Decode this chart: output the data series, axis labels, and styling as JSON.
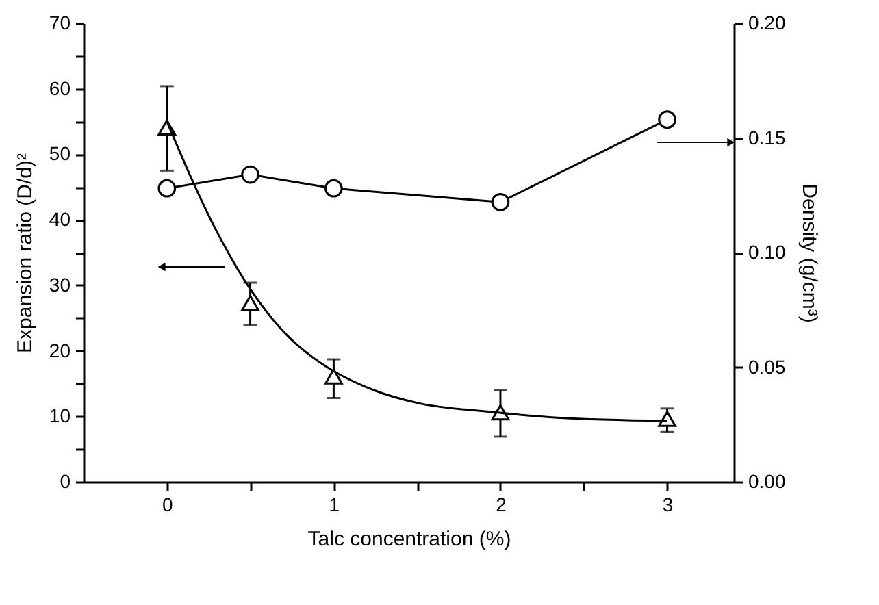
{
  "chart_data": {
    "type": "scatter",
    "xlabel": "Talc concentration (%)",
    "ylabel": "Expansion ratio (D/d)²",
    "y2label": "Density (g/cm³)",
    "xlim": [
      -0.5,
      3.4
    ],
    "xticks": [
      {
        "value": 0,
        "label": "0"
      },
      {
        "value": 0.5,
        "label": null
      },
      {
        "value": 1,
        "label": "1"
      },
      {
        "value": 1.5,
        "label": null
      },
      {
        "value": 2,
        "label": "2"
      },
      {
        "value": 2.5,
        "label": null
      },
      {
        "value": 3,
        "label": "3"
      }
    ],
    "ylim": [
      0,
      70
    ],
    "yticks": [
      0,
      {
        "value": 5,
        "label": null
      },
      10,
      {
        "value": 15,
        "label": null
      },
      20,
      {
        "value": 25,
        "label": null
      },
      30,
      {
        "value": 35,
        "label": null
      },
      40,
      {
        "value": 45,
        "label": null
      },
      50,
      {
        "value": 55,
        "label": null
      },
      60,
      {
        "value": 65,
        "label": null
      },
      70
    ],
    "y2lim": [
      0,
      0.2
    ],
    "y2ticks": [
      {
        "value": 0,
        "label": "0.00"
      },
      {
        "value": 0.05,
        "label": "0.05"
      },
      {
        "value": 0.1,
        "label": "0.10"
      },
      {
        "value": 0.15,
        "label": "0.15"
      },
      {
        "value": 0.2,
        "label": "0.20"
      }
    ],
    "grid": false,
    "series": [
      {
        "type": "scatter",
        "marker": "triangle",
        "color": "#000000",
        "x": [
          0,
          0.5,
          1,
          2,
          3
        ],
        "values": [
          54.1,
          27.3,
          16.1,
          10.6,
          9.6
        ],
        "errors": [
          [
            47.5,
            60.4
          ],
          [
            23.9,
            30.4
          ],
          [
            12.8,
            18.7
          ],
          [
            6.9,
            14.0
          ],
          [
            7.6,
            11.2
          ]
        ]
      },
      {
        "type": "line",
        "color": "#000000",
        "x": [
          0,
          0.165,
          0.275,
          0.385,
          0.495,
          0.606,
          0.743,
          0.88,
          1.0,
          1.24,
          1.51,
          1.93,
          2.34,
          3.0
        ],
        "values": [
          55.0,
          45.3,
          39.4,
          34.2,
          29.6,
          25.7,
          21.8,
          18.9,
          16.9,
          14.0,
          12.0,
          10.7,
          9.8,
          9.3
        ]
      },
      {
        "type": "line",
        "marker": "circle",
        "axis": "y2",
        "color": "#000000",
        "x": [
          0,
          0.5,
          1,
          2,
          3
        ],
        "values": [
          0.128,
          0.134,
          0.128,
          0.122,
          0.158
        ]
      }
    ]
  }
}
